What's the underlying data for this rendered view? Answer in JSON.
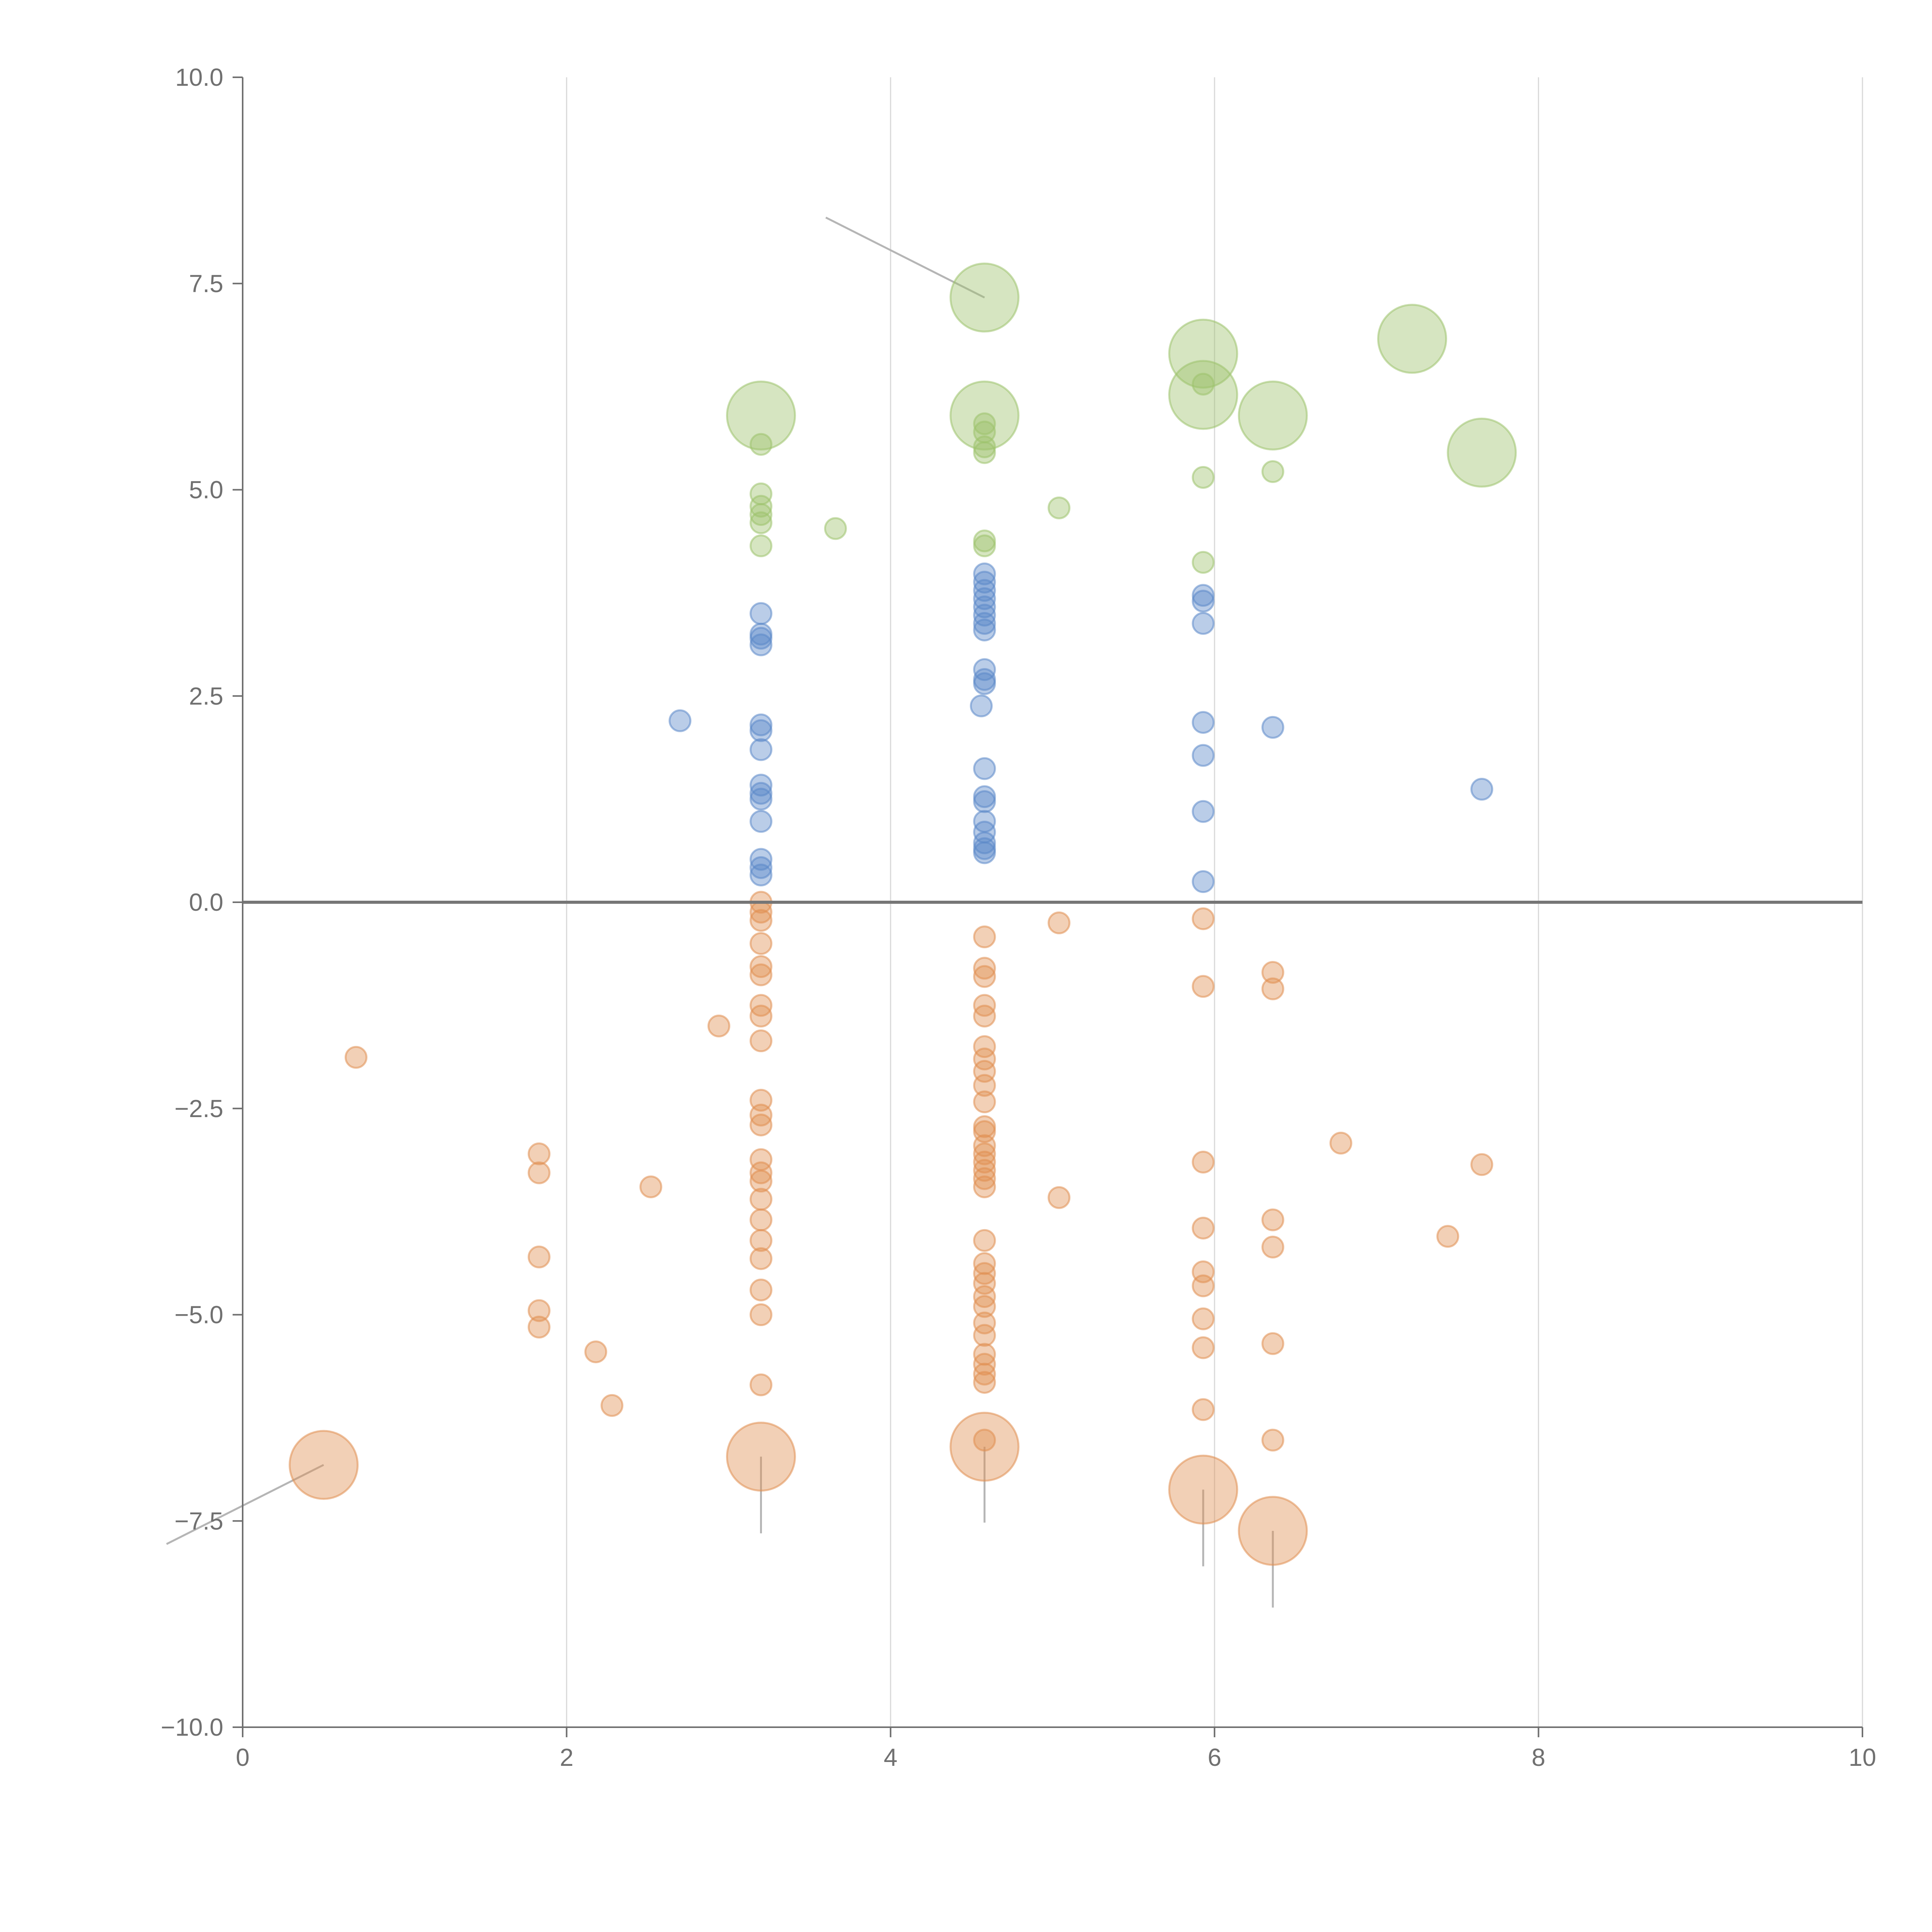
{
  "chart_data": {
    "type": "scatter",
    "title": "",
    "xlabel": "",
    "ylabel": "",
    "xlim": [
      0,
      10
    ],
    "ylim": [
      -10,
      10
    ],
    "grid": {
      "vertical": true,
      "horizontal": false
    },
    "x_ticks": [
      "0",
      "2",
      "4",
      "6",
      "8",
      "10"
    ],
    "y_ticks": [
      "10.0",
      "7.5",
      "5.0",
      "2.5",
      "0.0",
      "−2.5",
      "−5.0",
      "−7.5",
      "−10.0"
    ],
    "colors": {
      "green": "#9dc26b",
      "blue": "#5b89c8",
      "orange": "#e08e50",
      "zero_line": "#767676",
      "axis": "#6f6f6f",
      "grid": "#d9d9d9",
      "leader": "#b5b5b5"
    },
    "size_scale": {
      "s": 27,
      "m": 44,
      "l": 88
    },
    "series": [
      {
        "name": "green",
        "color": "#9dc26b",
        "points": [
          [
            3.2,
            5.9,
            "l"
          ],
          [
            3.2,
            5.55,
            "s"
          ],
          [
            3.2,
            4.95,
            "s"
          ],
          [
            3.2,
            4.8,
            "s"
          ],
          [
            3.2,
            4.7,
            "s"
          ],
          [
            3.2,
            4.6,
            "s"
          ],
          [
            3.2,
            4.32,
            "s"
          ],
          [
            3.66,
            4.53,
            "s"
          ],
          [
            4.58,
            7.33,
            "l"
          ],
          [
            4.58,
            5.9,
            "l"
          ],
          [
            4.58,
            5.8,
            "s"
          ],
          [
            4.58,
            5.7,
            "s"
          ],
          [
            4.58,
            5.52,
            "s"
          ],
          [
            4.58,
            5.45,
            "s"
          ],
          [
            4.58,
            4.38,
            "s"
          ],
          [
            4.58,
            4.32,
            "s"
          ],
          [
            5.04,
            4.78,
            "s"
          ],
          [
            5.93,
            6.65,
            "l"
          ],
          [
            5.93,
            6.15,
            "l"
          ],
          [
            5.93,
            6.28,
            "s"
          ],
          [
            5.93,
            5.15,
            "s"
          ],
          [
            5.93,
            4.12,
            "s"
          ],
          [
            6.36,
            5.9,
            "l"
          ],
          [
            6.36,
            5.22,
            "s"
          ],
          [
            7.22,
            6.83,
            "l"
          ],
          [
            7.65,
            5.45,
            "l"
          ]
        ]
      },
      {
        "name": "blue",
        "color": "#5b89c8",
        "points": [
          [
            2.7,
            2.2,
            "s"
          ],
          [
            3.2,
            3.5,
            "s"
          ],
          [
            3.2,
            3.25,
            "s"
          ],
          [
            3.2,
            3.2,
            "s"
          ],
          [
            3.2,
            3.12,
            "s"
          ],
          [
            3.2,
            2.15,
            "s"
          ],
          [
            3.2,
            2.08,
            "s"
          ],
          [
            3.2,
            1.85,
            "s"
          ],
          [
            3.2,
            1.42,
            "s"
          ],
          [
            3.2,
            1.32,
            "s"
          ],
          [
            3.2,
            1.25,
            "s"
          ],
          [
            3.2,
            0.98,
            "s"
          ],
          [
            3.2,
            0.52,
            "s"
          ],
          [
            3.2,
            0.42,
            "s"
          ],
          [
            3.2,
            0.33,
            "s"
          ],
          [
            4.58,
            3.98,
            "s"
          ],
          [
            4.58,
            3.88,
            "s"
          ],
          [
            4.58,
            3.78,
            "s"
          ],
          [
            4.58,
            3.68,
            "s"
          ],
          [
            4.58,
            3.58,
            "s"
          ],
          [
            4.58,
            3.48,
            "s"
          ],
          [
            4.58,
            3.38,
            "s"
          ],
          [
            4.58,
            3.3,
            "s"
          ],
          [
            4.58,
            2.82,
            "s"
          ],
          [
            4.58,
            2.7,
            "s"
          ],
          [
            4.58,
            2.65,
            "s"
          ],
          [
            4.56,
            2.38,
            "s"
          ],
          [
            4.58,
            1.62,
            "s"
          ],
          [
            4.58,
            1.28,
            "s"
          ],
          [
            4.58,
            1.22,
            "s"
          ],
          [
            4.58,
            0.98,
            "s"
          ],
          [
            4.58,
            0.85,
            "s"
          ],
          [
            4.58,
            0.72,
            "s"
          ],
          [
            4.58,
            0.65,
            "s"
          ],
          [
            4.58,
            0.6,
            "s"
          ],
          [
            5.93,
            3.72,
            "s"
          ],
          [
            5.93,
            3.65,
            "s"
          ],
          [
            5.93,
            3.38,
            "s"
          ],
          [
            5.93,
            2.18,
            "s"
          ],
          [
            5.93,
            1.78,
            "s"
          ],
          [
            5.93,
            1.1,
            "s"
          ],
          [
            5.93,
            0.25,
            "s"
          ],
          [
            6.36,
            2.12,
            "s"
          ],
          [
            7.65,
            1.37,
            "s"
          ]
        ]
      },
      {
        "name": "orange",
        "color": "#e08e50",
        "points": [
          [
            0.7,
            -1.88,
            "s"
          ],
          [
            0.5,
            -6.82,
            "l"
          ],
          [
            1.83,
            -3.05,
            "s"
          ],
          [
            1.83,
            -3.28,
            "s"
          ],
          [
            1.83,
            -4.3,
            "s"
          ],
          [
            1.83,
            -4.95,
            "s"
          ],
          [
            1.83,
            -5.15,
            "s"
          ],
          [
            2.18,
            -5.45,
            "s"
          ],
          [
            2.28,
            -6.1,
            "s"
          ],
          [
            2.52,
            -3.45,
            "s"
          ],
          [
            2.94,
            -1.5,
            "s"
          ],
          [
            3.2,
            0.0,
            "s"
          ],
          [
            3.2,
            -0.12,
            "s"
          ],
          [
            3.2,
            -0.22,
            "s"
          ],
          [
            3.2,
            -0.5,
            "s"
          ],
          [
            3.2,
            -0.78,
            "s"
          ],
          [
            3.2,
            -0.88,
            "s"
          ],
          [
            3.2,
            -1.25,
            "s"
          ],
          [
            3.2,
            -1.38,
            "s"
          ],
          [
            3.2,
            -1.68,
            "s"
          ],
          [
            3.2,
            -2.4,
            "s"
          ],
          [
            3.2,
            -2.58,
            "s"
          ],
          [
            3.2,
            -2.7,
            "s"
          ],
          [
            3.2,
            -3.12,
            "s"
          ],
          [
            3.2,
            -3.28,
            "s"
          ],
          [
            3.2,
            -3.38,
            "s"
          ],
          [
            3.2,
            -3.6,
            "s"
          ],
          [
            3.2,
            -3.85,
            "s"
          ],
          [
            3.2,
            -4.1,
            "s"
          ],
          [
            3.2,
            -4.32,
            "s"
          ],
          [
            3.2,
            -4.7,
            "s"
          ],
          [
            3.2,
            -5.0,
            "s"
          ],
          [
            3.2,
            -5.85,
            "s"
          ],
          [
            3.2,
            -6.72,
            "l"
          ],
          [
            4.58,
            -0.42,
            "s"
          ],
          [
            4.58,
            -0.8,
            "s"
          ],
          [
            4.58,
            -0.9,
            "s"
          ],
          [
            4.58,
            -1.25,
            "s"
          ],
          [
            4.58,
            -1.38,
            "s"
          ],
          [
            4.58,
            -1.75,
            "s"
          ],
          [
            4.58,
            -1.9,
            "s"
          ],
          [
            4.58,
            -2.05,
            "s"
          ],
          [
            4.58,
            -2.22,
            "s"
          ],
          [
            4.58,
            -2.42,
            "s"
          ],
          [
            4.58,
            -2.72,
            "s"
          ],
          [
            4.58,
            -2.78,
            "s"
          ],
          [
            4.58,
            -2.95,
            "s"
          ],
          [
            4.58,
            -3.05,
            "s"
          ],
          [
            4.58,
            -3.15,
            "s"
          ],
          [
            4.58,
            -3.25,
            "s"
          ],
          [
            4.58,
            -3.35,
            "s"
          ],
          [
            4.58,
            -3.45,
            "s"
          ],
          [
            4.58,
            -4.1,
            "s"
          ],
          [
            4.58,
            -4.38,
            "s"
          ],
          [
            4.58,
            -4.5,
            "s"
          ],
          [
            4.58,
            -4.62,
            "s"
          ],
          [
            4.58,
            -4.78,
            "s"
          ],
          [
            4.58,
            -4.9,
            "s"
          ],
          [
            4.58,
            -5.1,
            "s"
          ],
          [
            4.58,
            -5.25,
            "s"
          ],
          [
            4.58,
            -5.48,
            "s"
          ],
          [
            4.58,
            -5.6,
            "s"
          ],
          [
            4.58,
            -5.72,
            "s"
          ],
          [
            4.58,
            -5.82,
            "s"
          ],
          [
            4.58,
            -6.52,
            "s"
          ],
          [
            4.58,
            -6.6,
            "l"
          ],
          [
            5.04,
            -0.25,
            "s"
          ],
          [
            5.04,
            -3.58,
            "s"
          ],
          [
            5.93,
            -0.2,
            "s"
          ],
          [
            5.93,
            -1.02,
            "s"
          ],
          [
            5.93,
            -3.15,
            "s"
          ],
          [
            5.93,
            -3.95,
            "s"
          ],
          [
            5.93,
            -4.48,
            "s"
          ],
          [
            5.93,
            -4.65,
            "s"
          ],
          [
            5.93,
            -5.05,
            "s"
          ],
          [
            5.93,
            -5.4,
            "s"
          ],
          [
            5.93,
            -6.15,
            "s"
          ],
          [
            5.93,
            -7.12,
            "l"
          ],
          [
            6.36,
            -0.85,
            "s"
          ],
          [
            6.36,
            -1.05,
            "s"
          ],
          [
            6.36,
            -3.85,
            "s"
          ],
          [
            6.36,
            -4.18,
            "s"
          ],
          [
            6.36,
            -5.35,
            "s"
          ],
          [
            6.36,
            -6.52,
            "s"
          ],
          [
            6.36,
            -7.62,
            "l"
          ],
          [
            6.78,
            -2.92,
            "s"
          ],
          [
            7.44,
            -4.05,
            "s"
          ],
          [
            7.65,
            -3.18,
            "s"
          ]
        ]
      }
    ],
    "annotations": [
      {
        "label": "",
        "anchor": [
          4.58,
          7.33
        ],
        "line_to": [
          3.6,
          8.3
        ],
        "color": "#b5b5b5"
      },
      {
        "label": "",
        "anchor": [
          0.5,
          -6.82
        ],
        "line_to": [
          -0.47,
          -7.78
        ],
        "color": "#b5b5b5"
      },
      {
        "label": "",
        "anchor": [
          3.2,
          -6.72
        ],
        "line_to": [
          3.2,
          -7.65
        ],
        "color": "#b5b5b5"
      },
      {
        "label": "",
        "anchor": [
          4.58,
          -6.6
        ],
        "line_to": [
          4.58,
          -7.52
        ],
        "color": "#b5b5b5"
      },
      {
        "label": "",
        "anchor": [
          5.93,
          -7.12
        ],
        "line_to": [
          5.93,
          -8.05
        ],
        "color": "#b5b5b5"
      },
      {
        "label": "",
        "anchor": [
          6.36,
          -7.62
        ],
        "line_to": [
          6.36,
          -8.55
        ],
        "color": "#b5b5b5"
      }
    ]
  }
}
